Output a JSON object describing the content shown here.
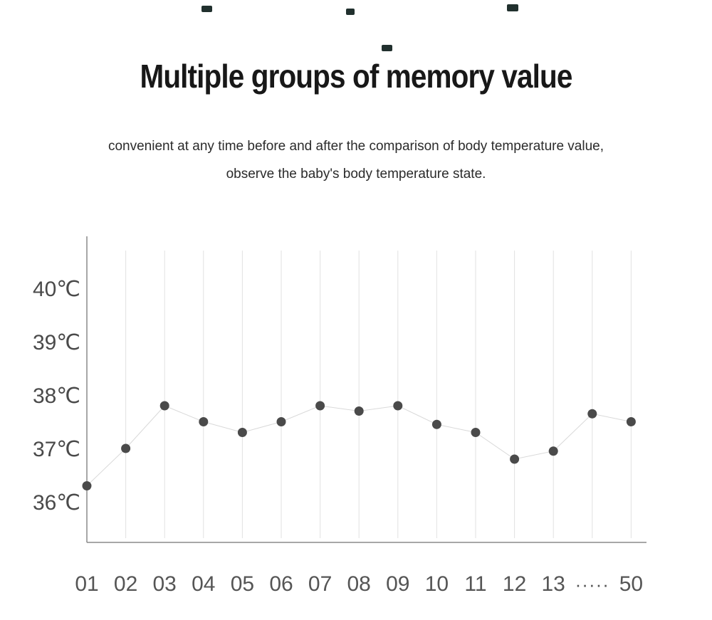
{
  "page": {
    "title": "Multiple groups of memory value",
    "subtitle_line1": "convenient at any time before and after the comparison of body temperature value,",
    "subtitle_line2": "observe the baby's body temperature state."
  },
  "chart_data": {
    "type": "line",
    "title": "Multiple groups of memory value",
    "xlabel": "",
    "ylabel": "",
    "x_labels": [
      "01",
      "02",
      "03",
      "04",
      "05",
      "06",
      "07",
      "08",
      "09",
      "10",
      "11",
      "12",
      "13",
      "·····",
      "50"
    ],
    "values": [
      36.3,
      37.0,
      37.8,
      37.5,
      37.3,
      37.5,
      37.8,
      37.7,
      37.8,
      37.45,
      37.3,
      36.8,
      36.95,
      37.65,
      37.5
    ],
    "y_ticks": [
      {
        "label": "40℃",
        "value": 40
      },
      {
        "label": "39℃",
        "value": 39
      },
      {
        "label": "38℃",
        "value": 38
      },
      {
        "label": "37℃",
        "value": 37
      },
      {
        "label": "36℃",
        "value": 36
      }
    ],
    "ylim": [
      35.2,
      41.0
    ],
    "grid": "vertical-only",
    "legend": "none",
    "colors": {
      "point": "#4a4a4a",
      "line": "#d9d9d9",
      "axis": "#8a8a8a",
      "grid": "#e2e2e2"
    }
  }
}
